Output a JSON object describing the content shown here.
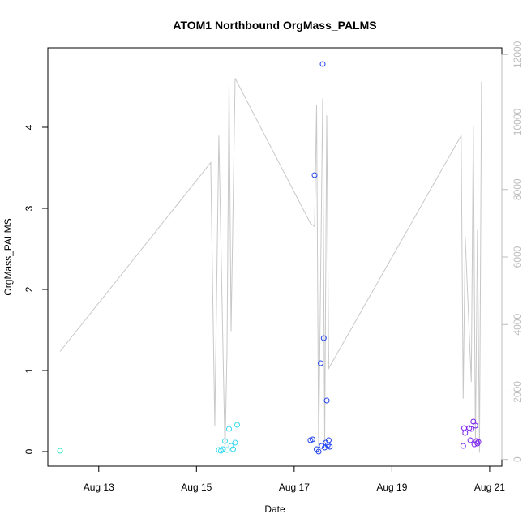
{
  "chart_data": {
    "type": "scatter",
    "title": "ATOM1 Northbound OrgMass_PALMS",
    "xlabel": "Date",
    "ylabel": "OrgMass_PALMS",
    "xlim": [
      "2016-08-11 23:00",
      "2016-08-21 06:00"
    ],
    "ylim": [
      -0.18,
      4.98
    ],
    "y2lim": [
      -200,
      12200
    ],
    "x_ticks": [
      "2016-08-13",
      "2016-08-15",
      "2016-08-17",
      "2016-08-19",
      "2016-08-21"
    ],
    "x_tick_labels": [
      "Aug 13",
      "Aug 15",
      "Aug 17",
      "Aug 19",
      "Aug 21"
    ],
    "y_ticks": [
      0,
      1,
      2,
      3,
      4
    ],
    "y_tick_labels": [
      "0",
      "1",
      "2",
      "3",
      "4"
    ],
    "y2_ticks": [
      0,
      2000,
      4000,
      6000,
      8000,
      10000,
      12000
    ],
    "y2_tick_labels": [
      "0",
      "2000",
      "4000",
      "6000",
      "8000",
      "10000",
      "12000"
    ],
    "grid": false,
    "points": [
      {
        "t": "2016-08-12 05:00",
        "y": 0.01,
        "color": "#33e6cc"
      },
      {
        "t": "2016-08-15 11:00",
        "y": 0.02,
        "color": "#33d8ee"
      },
      {
        "t": "2016-08-15 12:00",
        "y": 0.01,
        "color": "#33d8ee"
      },
      {
        "t": "2016-08-15 13:00",
        "y": 0.03,
        "color": "#33d8ee"
      },
      {
        "t": "2016-08-15 14:00",
        "y": 0.13,
        "color": "#33d8ee"
      },
      {
        "t": "2016-08-15 15:00",
        "y": 0.02,
        "color": "#33d8ee"
      },
      {
        "t": "2016-08-15 16:00",
        "y": 0.28,
        "color": "#33d8ee"
      },
      {
        "t": "2016-08-15 17:00",
        "y": 0.07,
        "color": "#33d8ee"
      },
      {
        "t": "2016-08-15 18:00",
        "y": 0.03,
        "color": "#33d8ee"
      },
      {
        "t": "2016-08-15 19:00",
        "y": 0.11,
        "color": "#33d8ee"
      },
      {
        "t": "2016-08-15 20:00",
        "y": 0.33,
        "color": "#33d8ee"
      },
      {
        "t": "2016-08-17 08:00",
        "y": 0.14,
        "color": "#2244ee"
      },
      {
        "t": "2016-08-17 09:00",
        "y": 0.15,
        "color": "#2244ee"
      },
      {
        "t": "2016-08-17 10:00",
        "y": 3.41,
        "color": "#2244ee"
      },
      {
        "t": "2016-08-17 11:00",
        "y": 0.03,
        "color": "#2244ee"
      },
      {
        "t": "2016-08-17 12:00",
        "y": 0.0,
        "color": "#2244ee"
      },
      {
        "t": "2016-08-17 13:00",
        "y": 1.09,
        "color": "#2244ee"
      },
      {
        "t": "2016-08-17 13:30",
        "y": 0.07,
        "color": "#2244ee"
      },
      {
        "t": "2016-08-17 14:00",
        "y": 4.78,
        "color": "#2244ee"
      },
      {
        "t": "2016-08-17 14:30",
        "y": 1.4,
        "color": "#2244ee"
      },
      {
        "t": "2016-08-17 15:00",
        "y": 0.05,
        "color": "#2244ee"
      },
      {
        "t": "2016-08-17 15:30",
        "y": 0.11,
        "color": "#2244ee"
      },
      {
        "t": "2016-08-17 16:00",
        "y": 0.63,
        "color": "#2244ee"
      },
      {
        "t": "2016-08-17 16:30",
        "y": 0.08,
        "color": "#2244ee"
      },
      {
        "t": "2016-08-17 17:00",
        "y": 0.14,
        "color": "#2244ee"
      },
      {
        "t": "2016-08-17 17:30",
        "y": 0.06,
        "color": "#2244ee"
      },
      {
        "t": "2016-08-20 11:00",
        "y": 0.07,
        "color": "#7a22ee"
      },
      {
        "t": "2016-08-20 11:30",
        "y": 0.29,
        "color": "#7a22ee"
      },
      {
        "t": "2016-08-20 12:00",
        "y": 0.23,
        "color": "#7a22ee"
      },
      {
        "t": "2016-08-20 14:00",
        "y": 0.29,
        "color": "#7a22ee"
      },
      {
        "t": "2016-08-20 14:30",
        "y": 0.14,
        "color": "#7a22ee"
      },
      {
        "t": "2016-08-20 15:00",
        "y": 0.28,
        "color": "#7a22ee"
      },
      {
        "t": "2016-08-20 16:00",
        "y": 0.37,
        "color": "#7a22ee"
      },
      {
        "t": "2016-08-20 16:30",
        "y": 0.09,
        "color": "#7a22ee"
      },
      {
        "t": "2016-08-20 17:00",
        "y": 0.32,
        "color": "#7a22ee"
      },
      {
        "t": "2016-08-20 17:30",
        "y": 0.13,
        "color": "#7a22ee"
      },
      {
        "t": "2016-08-20 18:00",
        "y": 0.1,
        "color": "#7a22ee"
      },
      {
        "t": "2016-08-20 18:30",
        "y": 0.12,
        "color": "#7a22ee"
      }
    ],
    "line_series": {
      "axis": "right",
      "color": "#c8c8c8",
      "points": [
        {
          "t": "2016-08-12 05:00",
          "y": 3200
        },
        {
          "t": "2016-08-15 07:00",
          "y": 8800
        },
        {
          "t": "2016-08-15 09:00",
          "y": 1000
        },
        {
          "t": "2016-08-15 11:00",
          "y": 9600
        },
        {
          "t": "2016-08-15 14:00",
          "y": 200
        },
        {
          "t": "2016-08-15 15:00",
          "y": 3200
        },
        {
          "t": "2016-08-15 16:00",
          "y": 11200
        },
        {
          "t": "2016-08-15 17:00",
          "y": 3800
        },
        {
          "t": "2016-08-15 19:00",
          "y": 11300
        },
        {
          "t": "2016-08-17 08:00",
          "y": 7000
        },
        {
          "t": "2016-08-17 10:00",
          "y": 6900
        },
        {
          "t": "2016-08-17 11:00",
          "y": 10500
        },
        {
          "t": "2016-08-17 12:00",
          "y": 200
        },
        {
          "t": "2016-08-17 14:00",
          "y": 10700
        },
        {
          "t": "2016-08-17 15:00",
          "y": 500
        },
        {
          "t": "2016-08-17 16:00",
          "y": 10200
        },
        {
          "t": "2016-08-17 17:00",
          "y": 2700
        },
        {
          "t": "2016-08-20 10:00",
          "y": 9600
        },
        {
          "t": "2016-08-20 11:00",
          "y": 1800
        },
        {
          "t": "2016-08-20 12:00",
          "y": 6600
        },
        {
          "t": "2016-08-20 15:00",
          "y": 2300
        },
        {
          "t": "2016-08-20 16:00",
          "y": 9900
        },
        {
          "t": "2016-08-20 17:00",
          "y": 500
        },
        {
          "t": "2016-08-20 18:00",
          "y": 6800
        },
        {
          "t": "2016-08-20 19:00",
          "y": 200
        },
        {
          "t": "2016-08-20 20:00",
          "y": 11200
        }
      ]
    }
  }
}
